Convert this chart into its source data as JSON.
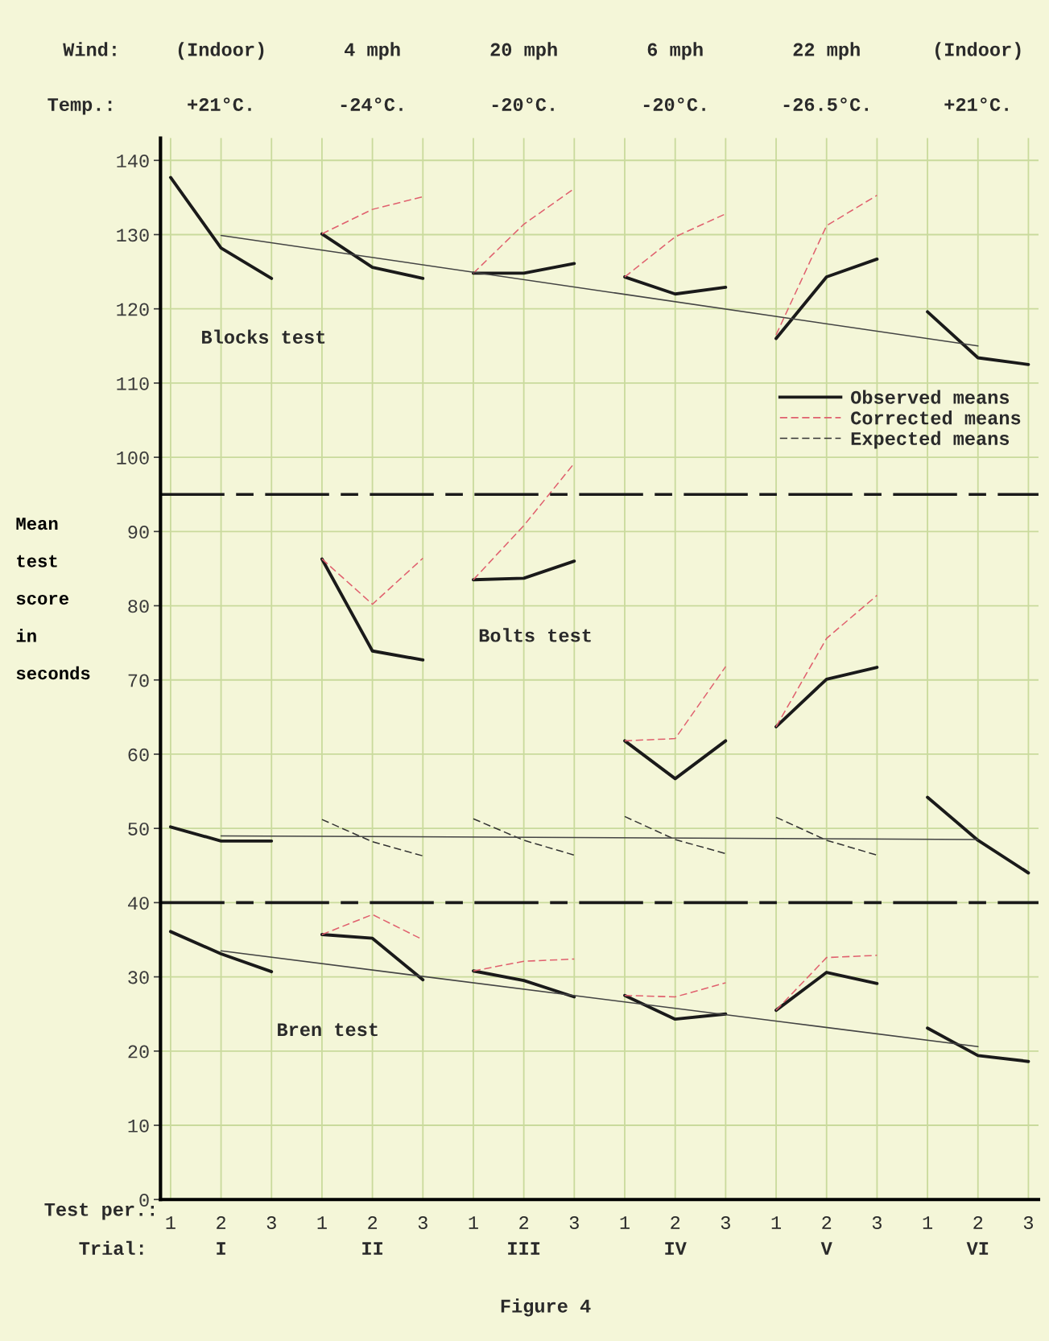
{
  "chart_data": {
    "type": "line",
    "ylabel": "Mean\ntest\nscore\nin\nseconds",
    "ylim": [
      0,
      143
    ],
    "yticks": [
      0,
      10,
      20,
      30,
      40,
      50,
      60,
      70,
      80,
      90,
      100,
      110,
      120,
      130,
      140
    ],
    "categories": [
      "1",
      "2",
      "3",
      "1",
      "2",
      "3",
      "1",
      "2",
      "3",
      "1",
      "2",
      "3",
      "1",
      "2",
      "3",
      "1",
      "2",
      "3"
    ],
    "grid": true,
    "legend": "right",
    "marker": "none",
    "ref_lines": [
      {
        "axis": "y",
        "value": 95,
        "color": "#1a1a1a",
        "line_style": "dashdot"
      },
      {
        "axis": "y",
        "value": 40,
        "color": "#1a1a1a",
        "line_style": "dashdot"
      }
    ],
    "annotations": [
      "Wind:",
      "Temp.:",
      "(Indoor)",
      "4 mph",
      "20 mph",
      "6 mph",
      "22 mph",
      "(Indoor)",
      "+21°C.",
      "-24°C.",
      "-20°C.",
      "-20°C.",
      "-26.5°C.",
      "+21°C.",
      "Test per.:",
      "Trial:",
      "I",
      "II",
      "III",
      "IV",
      "V",
      "VI",
      "Blocks test",
      "Bolts test",
      "Bren test",
      "Figure 4"
    ],
    "series": [
      {
        "name": "Observed means",
        "color": "#1a1a1a",
        "line_style": "solid",
        "values": [
          137.7,
          128.2,
          124.1,
          null,
          null,
          null,
          null,
          null,
          null,
          null,
          null,
          null,
          null,
          null,
          null,
          null,
          null,
          null
        ]
      },
      {
        "color": "#1a1a1a",
        "line_style": "solid",
        "values": [
          null,
          null,
          null,
          130.1,
          125.6,
          124.1,
          null,
          null,
          null,
          null,
          null,
          null,
          null,
          null,
          null,
          null,
          null,
          null
        ]
      },
      {
        "color": "#1a1a1a",
        "line_style": "solid",
        "values": [
          null,
          null,
          null,
          null,
          null,
          null,
          124.8,
          124.8,
          126.1,
          null,
          null,
          null,
          null,
          null,
          null,
          null,
          null,
          null
        ]
      },
      {
        "color": "#1a1a1a",
        "line_style": "solid",
        "values": [
          null,
          null,
          null,
          null,
          null,
          null,
          null,
          null,
          null,
          124.3,
          122.0,
          122.9,
          null,
          null,
          null,
          null,
          null,
          null
        ]
      },
      {
        "color": "#1a1a1a",
        "line_style": "solid",
        "values": [
          null,
          null,
          null,
          null,
          null,
          null,
          null,
          null,
          null,
          null,
          null,
          null,
          116.0,
          124.3,
          126.7,
          null,
          null,
          null
        ]
      },
      {
        "color": "#1a1a1a",
        "line_style": "solid",
        "values": [
          null,
          null,
          null,
          null,
          null,
          null,
          null,
          null,
          null,
          null,
          null,
          null,
          null,
          null,
          null,
          119.6,
          113.4,
          112.5
        ]
      },
      {
        "name": "Corrected means",
        "color": "#e0606e",
        "line_style": "dashed",
        "values": [
          null,
          null,
          null,
          130.1,
          133.4,
          135.1,
          null,
          null,
          null,
          null,
          null,
          null,
          null,
          null,
          null,
          null,
          null,
          null
        ]
      },
      {
        "color": "#e0606e",
        "line_style": "dashed",
        "values": [
          null,
          null,
          null,
          null,
          null,
          null,
          124.8,
          131.4,
          136.2,
          null,
          null,
          null,
          null,
          null,
          null,
          null,
          null,
          null
        ]
      },
      {
        "color": "#e0606e",
        "line_style": "dashed",
        "values": [
          null,
          null,
          null,
          null,
          null,
          null,
          null,
          null,
          null,
          124.3,
          129.7,
          132.8,
          null,
          null,
          null,
          null,
          null,
          null
        ]
      },
      {
        "color": "#e0606e",
        "line_style": "dashed",
        "values": [
          null,
          null,
          null,
          null,
          null,
          null,
          null,
          null,
          null,
          null,
          null,
          null,
          116.5,
          131.2,
          135.3,
          null,
          null,
          null
        ]
      },
      {
        "color": "#444444",
        "line_style": "solid",
        "values": [
          null,
          129.9,
          null,
          null,
          null,
          null,
          null,
          null,
          null,
          null,
          null,
          null,
          null,
          null,
          null,
          null,
          115.0,
          null
        ]
      },
      {
        "color": "#1a1a1a",
        "line_style": "solid",
        "values": [
          50.2,
          48.3,
          48.3,
          null,
          null,
          null,
          null,
          null,
          null,
          null,
          null,
          null,
          null,
          null,
          null,
          null,
          null,
          null
        ]
      },
      {
        "color": "#1a1a1a",
        "line_style": "solid",
        "values": [
          null,
          null,
          null,
          86.3,
          73.9,
          72.7,
          null,
          null,
          null,
          null,
          null,
          null,
          null,
          null,
          null,
          null,
          null,
          null
        ]
      },
      {
        "color": "#1a1a1a",
        "line_style": "solid",
        "values": [
          null,
          null,
          null,
          null,
          null,
          null,
          83.5,
          83.7,
          86.0,
          null,
          null,
          null,
          null,
          null,
          null,
          null,
          null,
          null
        ]
      },
      {
        "color": "#1a1a1a",
        "line_style": "solid",
        "values": [
          null,
          null,
          null,
          null,
          null,
          null,
          null,
          null,
          null,
          61.8,
          56.7,
          61.8,
          null,
          null,
          null,
          null,
          null,
          null
        ]
      },
      {
        "color": "#1a1a1a",
        "line_style": "solid",
        "values": [
          null,
          null,
          null,
          null,
          null,
          null,
          null,
          null,
          null,
          null,
          null,
          null,
          63.7,
          70.1,
          71.7,
          null,
          null,
          null
        ]
      },
      {
        "color": "#1a1a1a",
        "line_style": "solid",
        "values": [
          null,
          null,
          null,
          null,
          null,
          null,
          null,
          null,
          null,
          null,
          null,
          null,
          null,
          null,
          null,
          54.2,
          48.4,
          44.0
        ]
      },
      {
        "color": "#e0606e",
        "line_style": "dashed",
        "values": [
          null,
          null,
          null,
          86.3,
          80.2,
          86.4,
          null,
          null,
          null,
          null,
          null,
          null,
          null,
          null,
          null,
          null,
          null,
          null
        ]
      },
      {
        "color": "#e0606e",
        "line_style": "dashed",
        "values": [
          null,
          null,
          null,
          null,
          null,
          null,
          83.5,
          90.8,
          99.2,
          null,
          null,
          null,
          null,
          null,
          null,
          null,
          null,
          null
        ]
      },
      {
        "color": "#e0606e",
        "line_style": "dashed",
        "values": [
          null,
          null,
          null,
          null,
          null,
          null,
          null,
          null,
          null,
          61.8,
          62.1,
          71.8,
          null,
          null,
          null,
          null,
          null,
          null
        ]
      },
      {
        "color": "#e0606e",
        "line_style": "dashed",
        "values": [
          null,
          null,
          null,
          null,
          null,
          null,
          null,
          null,
          null,
          null,
          null,
          null,
          63.7,
          75.6,
          81.4,
          null,
          null,
          null
        ]
      },
      {
        "name": "Expected means",
        "color": "#333333",
        "line_style": "dashed",
        "values": [
          null,
          null,
          null,
          51.2,
          48.2,
          46.3,
          null,
          null,
          null,
          null,
          null,
          null,
          null,
          null,
          null,
          null,
          null,
          null
        ]
      },
      {
        "color": "#333333",
        "line_style": "dashed",
        "values": [
          null,
          null,
          null,
          null,
          null,
          null,
          51.3,
          48.4,
          46.4,
          null,
          null,
          null,
          null,
          null,
          null,
          null,
          null,
          null
        ]
      },
      {
        "color": "#333333",
        "line_style": "dashed",
        "values": [
          null,
          null,
          null,
          null,
          null,
          null,
          null,
          null,
          null,
          51.6,
          48.5,
          46.6,
          null,
          null,
          null,
          null,
          null,
          null
        ]
      },
      {
        "color": "#333333",
        "line_style": "dashed",
        "values": [
          null,
          null,
          null,
          null,
          null,
          null,
          null,
          null,
          null,
          null,
          null,
          null,
          51.5,
          48.4,
          46.4,
          null,
          null,
          null
        ]
      },
      {
        "color": "#444444",
        "line_style": "solid",
        "values": [
          null,
          49.0,
          null,
          null,
          null,
          null,
          null,
          null,
          null,
          null,
          null,
          null,
          null,
          null,
          null,
          null,
          48.5,
          null
        ]
      },
      {
        "color": "#1a1a1a",
        "line_style": "solid",
        "values": [
          36.1,
          33.1,
          30.7,
          null,
          null,
          null,
          null,
          null,
          null,
          null,
          null,
          null,
          null,
          null,
          null,
          null,
          null,
          null
        ]
      },
      {
        "color": "#1a1a1a",
        "line_style": "solid",
        "values": [
          null,
          null,
          null,
          35.7,
          35.2,
          29.6,
          null,
          null,
          null,
          null,
          null,
          null,
          null,
          null,
          null,
          null,
          null,
          null
        ]
      },
      {
        "color": "#1a1a1a",
        "line_style": "solid",
        "values": [
          null,
          null,
          null,
          null,
          null,
          null,
          30.8,
          29.5,
          27.3,
          null,
          null,
          null,
          null,
          null,
          null,
          null,
          null,
          null
        ]
      },
      {
        "color": "#1a1a1a",
        "line_style": "solid",
        "values": [
          null,
          null,
          null,
          null,
          null,
          null,
          null,
          null,
          null,
          27.5,
          24.3,
          25.0,
          null,
          null,
          null,
          null,
          null,
          null
        ]
      },
      {
        "color": "#1a1a1a",
        "line_style": "solid",
        "values": [
          null,
          null,
          null,
          null,
          null,
          null,
          null,
          null,
          null,
          null,
          null,
          null,
          25.5,
          30.6,
          29.1,
          null,
          null,
          null
        ]
      },
      {
        "color": "#1a1a1a",
        "line_style": "solid",
        "values": [
          null,
          null,
          null,
          null,
          null,
          null,
          null,
          null,
          null,
          null,
          null,
          null,
          null,
          null,
          null,
          23.1,
          19.4,
          18.6
        ]
      },
      {
        "color": "#e0606e",
        "line_style": "dashed",
        "values": [
          null,
          null,
          null,
          35.7,
          38.4,
          35.0,
          null,
          null,
          null,
          null,
          null,
          null,
          null,
          null,
          null,
          null,
          null,
          null
        ]
      },
      {
        "color": "#e0606e",
        "line_style": "dashed",
        "values": [
          null,
          null,
          null,
          null,
          null,
          null,
          30.8,
          32.1,
          32.4,
          null,
          null,
          null,
          null,
          null,
          null,
          null,
          null,
          null
        ]
      },
      {
        "color": "#e0606e",
        "line_style": "dashed",
        "values": [
          null,
          null,
          null,
          null,
          null,
          null,
          null,
          null,
          null,
          27.5,
          27.3,
          29.2,
          null,
          null,
          null,
          null,
          null,
          null
        ]
      },
      {
        "color": "#e0606e",
        "line_style": "dashed",
        "values": [
          null,
          null,
          null,
          null,
          null,
          null,
          null,
          null,
          null,
          null,
          null,
          null,
          25.5,
          32.6,
          32.9,
          null,
          null,
          null
        ]
      },
      {
        "color": "#444444",
        "line_style": "solid",
        "values": [
          null,
          33.5,
          null,
          null,
          null,
          null,
          null,
          null,
          null,
          null,
          null,
          null,
          null,
          null,
          null,
          null,
          20.6,
          null
        ]
      }
    ]
  }
}
